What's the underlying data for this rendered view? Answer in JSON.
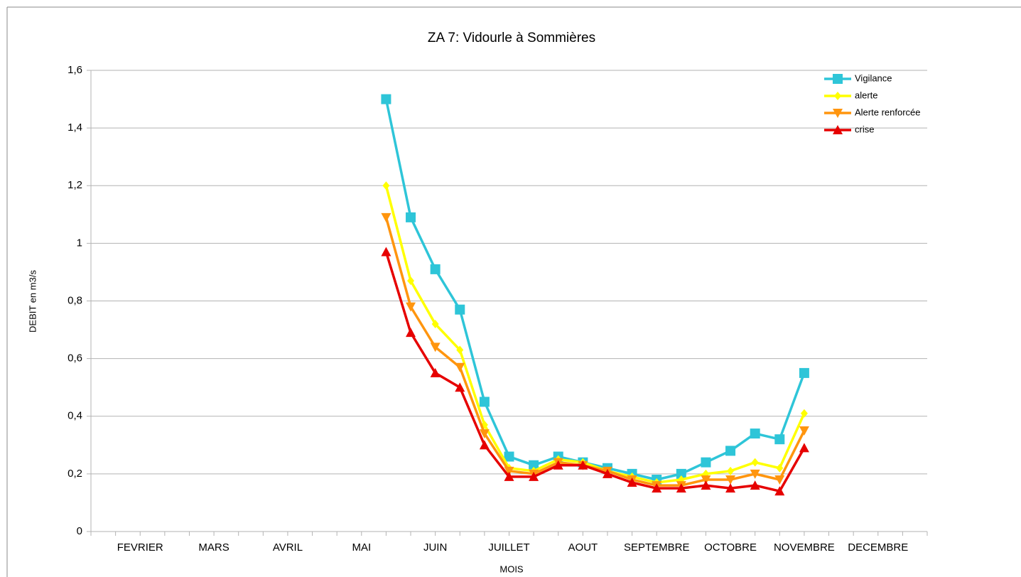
{
  "chart_data": {
    "type": "line",
    "title": "ZA 7: Vidourle à Sommières",
    "x_label": "MOIS",
    "y_label": "DEBIT en m3/s",
    "categories": [
      null,
      null,
      "FEVRIER",
      null,
      null,
      "MARS",
      null,
      null,
      "AVRIL",
      null,
      null,
      "MAI",
      null,
      null,
      "JUIN",
      null,
      null,
      "JUILLET",
      null,
      null,
      "AOUT",
      null,
      null,
      "SEPTEMBRE",
      null,
      null,
      "OCTOBRE",
      null,
      null,
      "NOVEMBRE",
      null,
      null,
      "DECEMBRE",
      null,
      null
    ],
    "series": [
      {
        "name": "Vigilance",
        "color": "#2ec5d8",
        "marker": "square",
        "values": [
          null,
          null,
          null,
          null,
          null,
          null,
          null,
          null,
          null,
          null,
          null,
          null,
          1.5,
          1.09,
          0.91,
          0.77,
          0.45,
          0.26,
          0.23,
          0.26,
          0.24,
          0.22,
          0.2,
          0.18,
          0.2,
          0.24,
          0.28,
          0.34,
          0.32,
          0.55,
          null,
          null,
          null,
          null,
          null
        ]
      },
      {
        "name": "alerte",
        "color": "#ffff00",
        "marker": "diamond",
        "values": [
          null,
          null,
          null,
          null,
          null,
          null,
          null,
          null,
          null,
          null,
          null,
          null,
          1.2,
          0.87,
          0.72,
          0.63,
          0.37,
          0.22,
          0.21,
          0.25,
          0.24,
          0.21,
          0.19,
          0.17,
          0.18,
          0.2,
          0.21,
          0.24,
          0.22,
          0.41,
          null,
          null,
          null,
          null,
          null
        ]
      },
      {
        "name": "Alerte renforcée",
        "color": "#ff950e",
        "marker": "triangle-down",
        "values": [
          null,
          null,
          null,
          null,
          null,
          null,
          null,
          null,
          null,
          null,
          null,
          null,
          1.09,
          0.78,
          0.64,
          0.57,
          0.34,
          0.21,
          0.2,
          0.24,
          0.23,
          0.21,
          0.18,
          0.16,
          0.16,
          0.18,
          0.18,
          0.2,
          0.18,
          0.35,
          null,
          null,
          null,
          null,
          null
        ]
      },
      {
        "name": "crise",
        "color": "#e60000",
        "marker": "triangle-up",
        "values": [
          null,
          null,
          null,
          null,
          null,
          null,
          null,
          null,
          null,
          null,
          null,
          null,
          0.97,
          0.69,
          0.55,
          0.5,
          0.3,
          0.19,
          0.19,
          0.23,
          0.23,
          0.2,
          0.17,
          0.15,
          0.15,
          0.16,
          0.15,
          0.16,
          0.14,
          0.29,
          null,
          null,
          null,
          null,
          null
        ]
      }
    ],
    "ylim": [
      0,
      1.6
    ],
    "yticks": [
      0,
      {
        "value": 0.2,
        "label": "0,2"
      },
      {
        "value": 0.4,
        "label": "0,4"
      },
      {
        "value": 0.6,
        "label": "0,6"
      },
      {
        "value": 0.8,
        "label": "0,8"
      },
      1,
      {
        "value": 1.2,
        "label": "1,2"
      },
      {
        "value": 1.4,
        "label": "1,4"
      },
      {
        "value": 1.6,
        "label": "1,6"
      }
    ],
    "grid": true,
    "legend": "top-right"
  }
}
